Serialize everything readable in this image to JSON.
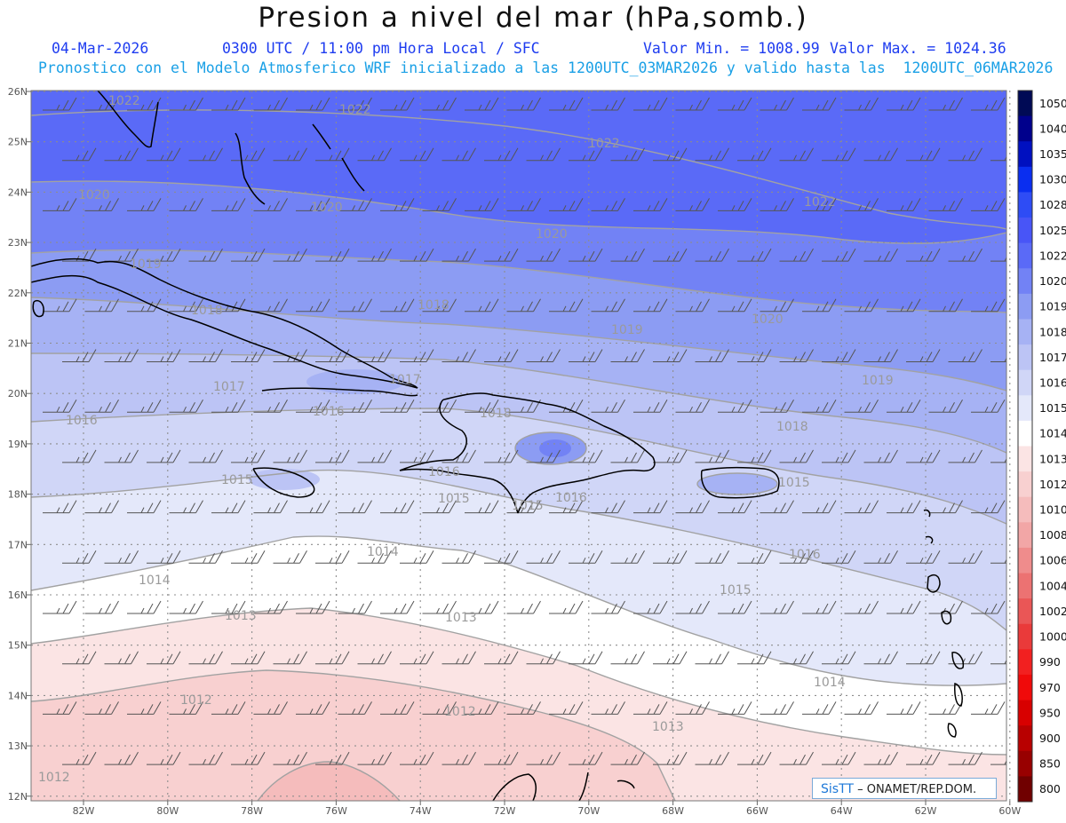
{
  "header": {
    "title": "Presion a nivel del mar (hPa,somb.)",
    "date": "04-Mar-2026",
    "time_label": "0300 UTC / 11:00 pm Hora Local / SFC",
    "min_label": "Valor Min. = 1008.99",
    "max_label": "Valor Max. = 1024.36",
    "model_line": "Pronostico con el Modelo Atmosferico WRF inicializado a las 1200UTC_03MAR2026 y valido hasta las  1200UTC_06MAR2026"
  },
  "axes": {
    "x_ticks": [
      "82W",
      "80W",
      "78W",
      "76W",
      "74W",
      "72W",
      "70W",
      "68W",
      "66W",
      "64W",
      "62W",
      "60W"
    ],
    "y_ticks": [
      "26N",
      "25N",
      "24N",
      "23N",
      "22N",
      "21N",
      "20N",
      "19N",
      "18N",
      "17N",
      "16N",
      "15N",
      "14N",
      "13N",
      "12N"
    ]
  },
  "colorbar": {
    "levels": [
      "1050",
      "1040",
      "1035",
      "1030",
      "1028",
      "1025",
      "1022",
      "1020",
      "1019",
      "1018",
      "1017",
      "1016",
      "1015",
      "1014",
      "1013",
      "1012",
      "1010",
      "1008",
      "1006",
      "1004",
      "1002",
      "1000",
      "990",
      "970",
      "950",
      "900",
      "850",
      "800"
    ],
    "colors": [
      "#000a55",
      "#00008c",
      "#0010c0",
      "#0a2ef0",
      "#2e4cf5",
      "#4855f7",
      "#5a6af7",
      "#7282f5",
      "#8c9cf3",
      "#a6b2f4",
      "#bcc4f5",
      "#d0d6f7",
      "#e4e8fa",
      "#ffffff",
      "#fbe4e4",
      "#f8d0d0",
      "#f5bcbc",
      "#f2a6a6",
      "#ef8c8c",
      "#ec7272",
      "#ea5656",
      "#ea3a3a",
      "#f22020",
      "#f00a0a",
      "#d80000",
      "#b80000",
      "#980000",
      "#700000"
    ]
  },
  "isobar_labels": [
    "1022",
    "1022",
    "1022",
    "1022",
    "1020",
    "1020",
    "1020",
    "1020",
    "1019",
    "1019",
    "1019",
    "1018",
    "1018",
    "1018",
    "1018",
    "1017",
    "1017",
    "1016",
    "1016",
    "1016",
    "1016",
    "1016",
    "1015",
    "1015",
    "1015",
    "1015",
    "1015",
    "1014",
    "1014",
    "1014",
    "1013",
    "1013",
    "1013",
    "1012",
    "1012",
    "1012"
  ],
  "credit": {
    "brand": "SisTT",
    "text": "– ONAMET/REP.DOM."
  }
}
